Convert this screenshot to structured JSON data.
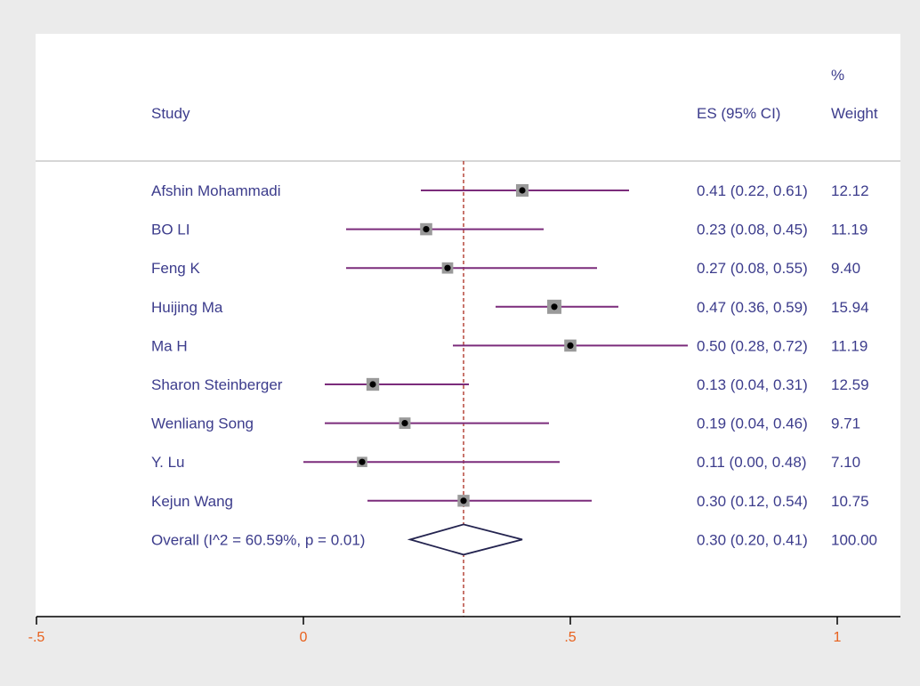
{
  "chart_data": {
    "type": "forest",
    "headers": {
      "study": "Study",
      "es": "ES (95% CI)",
      "weight_top": "%",
      "weight": "Weight"
    },
    "studies": [
      {
        "name": "Afshin Mohammadi",
        "es": 0.41,
        "lo": 0.22,
        "hi": 0.61,
        "label": "0.41 (0.22, 0.61)",
        "weight": "12.12"
      },
      {
        "name": "BO LI",
        "es": 0.23,
        "lo": 0.08,
        "hi": 0.45,
        "label": "0.23 (0.08, 0.45)",
        "weight": "11.19"
      },
      {
        "name": "Feng K",
        "es": 0.27,
        "lo": 0.08,
        "hi": 0.55,
        "label": "0.27 (0.08, 0.55)",
        "weight": "9.40"
      },
      {
        "name": "Huijing Ma",
        "es": 0.47,
        "lo": 0.36,
        "hi": 0.59,
        "label": "0.47 (0.36, 0.59)",
        "weight": "15.94"
      },
      {
        "name": "Ma H",
        "es": 0.5,
        "lo": 0.28,
        "hi": 0.72,
        "label": "0.50 (0.28, 0.72)",
        "weight": "11.19"
      },
      {
        "name": "Sharon Steinberger",
        "es": 0.13,
        "lo": 0.04,
        "hi": 0.31,
        "label": "0.13 (0.04, 0.31)",
        "weight": "12.59"
      },
      {
        "name": "Wenliang Song",
        "es": 0.19,
        "lo": 0.04,
        "hi": 0.46,
        "label": "0.19 (0.04, 0.46)",
        "weight": "9.71"
      },
      {
        "name": "Y. Lu",
        "es": 0.11,
        "lo": 0.0,
        "hi": 0.48,
        "label": "0.11 (0.00, 0.48)",
        "weight": "7.10"
      },
      {
        "name": "Kejun Wang",
        "es": 0.3,
        "lo": 0.12,
        "hi": 0.54,
        "label": "0.30 (0.12, 0.54)",
        "weight": "10.75"
      }
    ],
    "overall": {
      "name": "Overall  (I^2 = 60.59%, p = 0.01)",
      "es": 0.3,
      "lo": 0.2,
      "hi": 0.41,
      "label": "0.30 (0.20, 0.41)",
      "weight": "100.00"
    },
    "reference_line": 0.3,
    "xlim": [
      -0.5,
      1.12
    ],
    "xticks": [
      -0.5,
      0,
      0.5,
      1
    ],
    "xtick_labels": [
      "-.5",
      "0",
      ".5",
      "1"
    ],
    "colors": {
      "text": "#3c3c8c",
      "ci_line": "#7b2c7b",
      "marker": "#000000",
      "weight_box": "#9a9a9a",
      "ref_line": "#b03a2e",
      "tick_label": "#e8601c",
      "diamond": "#23234f"
    }
  }
}
